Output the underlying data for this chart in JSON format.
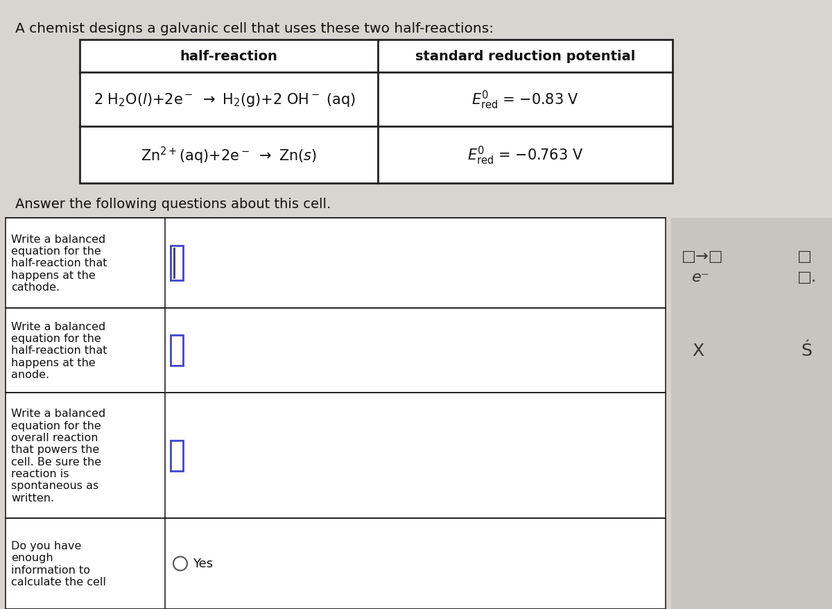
{
  "title": "A chemist designs a galvanic cell that uses these two half-reactions:",
  "bg_color": "#d8d5d0",
  "white": "#ffffff",
  "border_color": "#222222",
  "font_color": "#111111",
  "gray_bg": "#c8c5c0",
  "col1_header": "half-reaction",
  "col2_header": "standard reduction potential",
  "q1_label": "Write a balanced\nequation for the\nhalf-reaction that\nhappens at the\ncathode.",
  "q2_label": "Write a balanced\nequation for the\nhalf-reaction that\nhappens at the\nanode.",
  "q3_label": "Write a balanced\nequation for the\noverall reaction\nthat powers the\ncell. Be sure the\nreaction is\nspontaneous as\nwritten.",
  "q4_label": "Do you have\nenough\ninformation to\ncalculate the cell",
  "q4_answer": "Yes",
  "answer_intro": "Answer the following questions about this cell.",
  "rp_icons_row1": "□→□",
  "rp_icons_row1b": "□",
  "rp_e": "e",
  "rp_minus": "⁻",
  "rp_box": "□.",
  "rp_x": "X",
  "rp_s": "Ś"
}
